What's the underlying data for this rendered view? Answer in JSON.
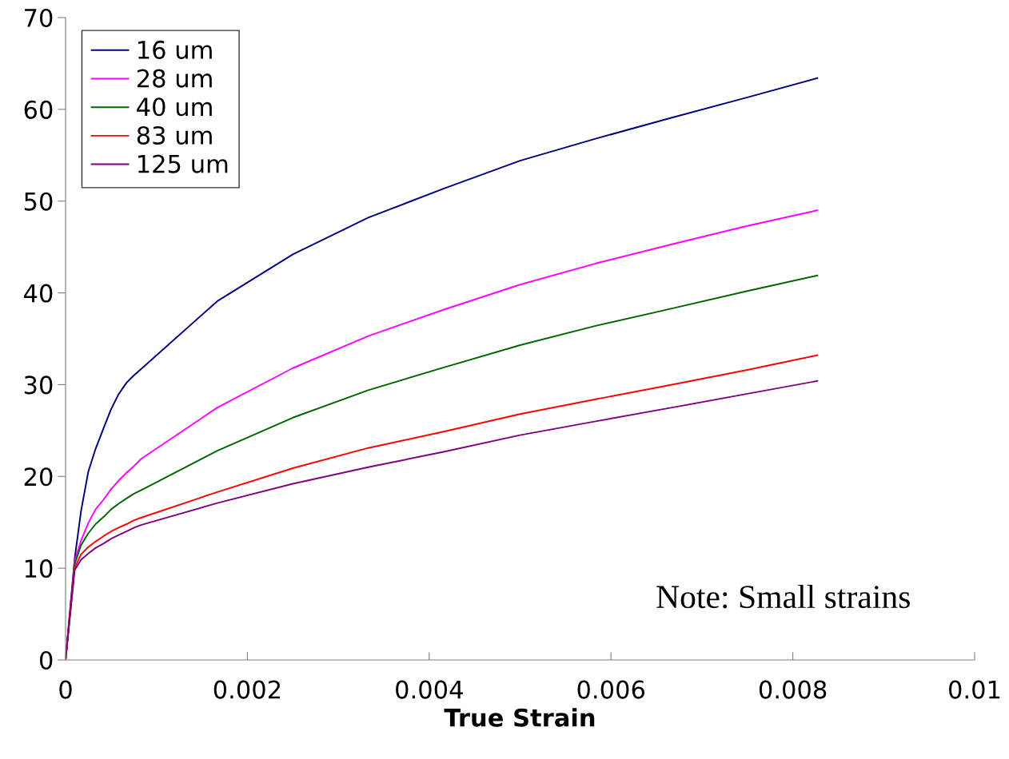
{
  "chart_data": {
    "type": "line",
    "xlabel": "True Strain",
    "x": [
      0,
      0.0001,
      0.00017,
      0.00025,
      0.00033,
      0.00042,
      0.0005,
      0.00058,
      0.00067,
      0.00075,
      0.00083,
      0.00167,
      0.0025,
      0.00333,
      0.00417,
      0.005,
      0.00583,
      0.00667,
      0.0075,
      0.00827
    ],
    "series": [
      {
        "name": "16 um",
        "color": "#000080",
        "values": [
          0,
          11,
          16.2,
          20.5,
          23,
          25.3,
          27.3,
          28.9,
          30.2,
          31,
          31.7,
          39.1,
          44.2,
          48.2,
          51.4,
          54.4,
          56.8,
          59.1,
          61.3,
          63.4
        ]
      },
      {
        "name": "28 um",
        "color": "#ff00ff",
        "values": [
          0,
          10.8,
          13,
          14.9,
          16.4,
          17.5,
          18.6,
          19.5,
          20.4,
          21.1,
          21.9,
          27.5,
          31.8,
          35.3,
          38.2,
          40.9,
          43.2,
          45.3,
          47.3,
          49
        ]
      },
      {
        "name": "40 um",
        "color": "#006400",
        "values": [
          0,
          10.4,
          12.5,
          13.8,
          14.8,
          15.6,
          16.4,
          17,
          17.6,
          18.1,
          18.5,
          22.8,
          26.4,
          29.4,
          31.9,
          34.3,
          36.4,
          38.3,
          40.2,
          41.9
        ]
      },
      {
        "name": "83 um",
        "color": "#ff0000",
        "values": [
          0,
          10,
          11.5,
          12.3,
          12.9,
          13.5,
          14,
          14.4,
          14.8,
          15.2,
          15.5,
          18.3,
          20.9,
          23.1,
          24.9,
          26.8,
          28.4,
          30,
          31.6,
          33.2
        ]
      },
      {
        "name": "125 um",
        "color": "#800080",
        "values": [
          0,
          9.8,
          10.9,
          11.6,
          12.2,
          12.7,
          13.2,
          13.6,
          14,
          14.4,
          14.7,
          17.1,
          19.2,
          21,
          22.7,
          24.5,
          26,
          27.5,
          29,
          30.4
        ]
      }
    ],
    "xlim": [
      0,
      0.01
    ],
    "xticks": [
      0,
      0.002,
      0.004,
      0.006,
      0.008,
      0.01
    ],
    "ylim": [
      0,
      70
    ],
    "yticks": [
      0,
      10,
      20,
      30,
      40,
      50,
      60,
      70
    ],
    "annotations": [
      "Note: Small strains"
    ],
    "legend": "top left",
    "grid": false,
    "marker": "none",
    "line_style": "solid"
  }
}
